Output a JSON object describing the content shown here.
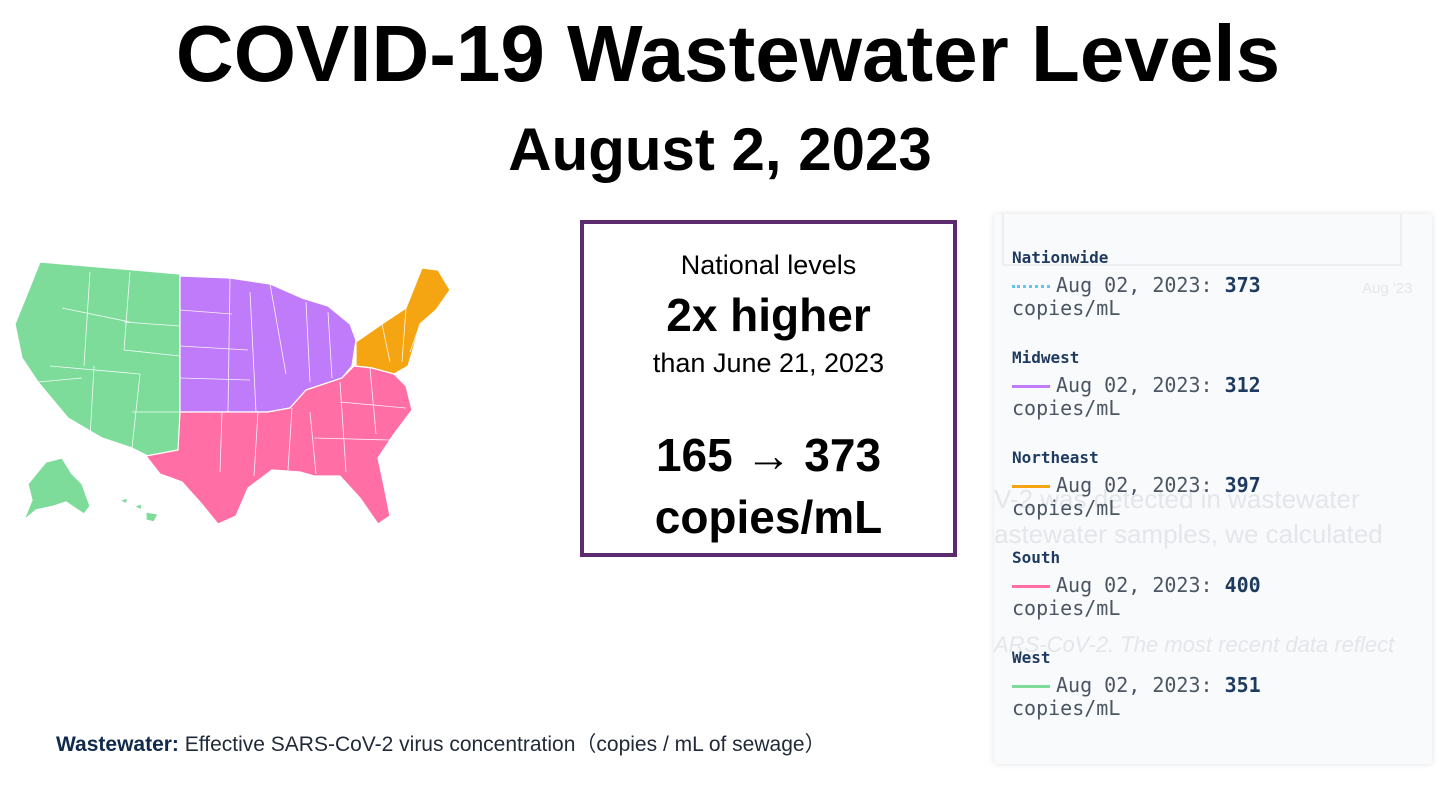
{
  "title": "COVID-19 Wastewater Levels",
  "subtitle": "August 2, 2023",
  "summary": {
    "label": "National levels",
    "headline": "2x higher",
    "comparison": "than June 21, 2023",
    "values": "165 → 373",
    "unit": "copies/mL"
  },
  "caption": {
    "bold": "Wastewater:",
    "text": "Effective SARS-CoV-2 virus concentration（copies / mL of sewage）"
  },
  "map": {
    "regions": [
      {
        "name": "West",
        "color": "#7ddc9a"
      },
      {
        "name": "Midwest",
        "color": "#c07bfa"
      },
      {
        "name": "Northeast",
        "color": "#f5a511"
      },
      {
        "name": "South",
        "color": "#ff6fa6"
      }
    ]
  },
  "panel": {
    "background_text": [
      "V-2 was detected in wastewater",
      "astewater samples, we calculated",
      "ARS-CoV-2. The most recent data reflect",
      "Aug '23"
    ],
    "entries": [
      {
        "name": "Nationwide",
        "date": "Aug 02, 2023:",
        "value": "373",
        "unit": "copies/mL",
        "color": "#60c6ee",
        "style": "dotted"
      },
      {
        "name": "Midwest",
        "date": "Aug 02, 2023:",
        "value": "312",
        "unit": "copies/mL",
        "color": "#c07bfa",
        "style": "solid"
      },
      {
        "name": "Northeast",
        "date": "Aug 02, 2023:",
        "value": "397",
        "unit": "copies/mL",
        "color": "#f5a511",
        "style": "solid"
      },
      {
        "name": "South",
        "date": "Aug 02, 2023:",
        "value": "400",
        "unit": "copies/mL",
        "color": "#ff6fa6",
        "style": "solid"
      },
      {
        "name": "West",
        "date": "Aug 02, 2023:",
        "value": "351",
        "unit": "copies/mL",
        "color": "#7ddc9a",
        "style": "solid"
      }
    ]
  }
}
